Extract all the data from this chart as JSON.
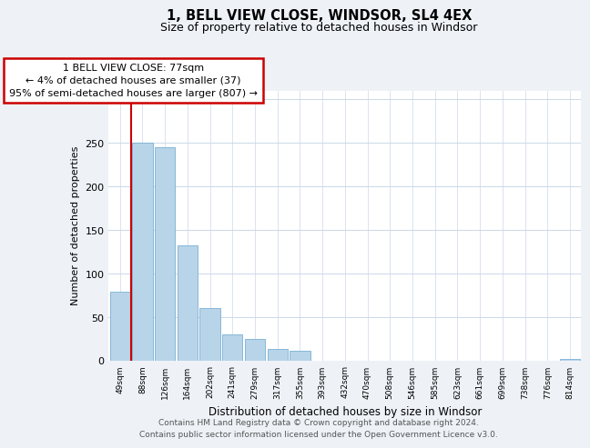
{
  "title": "1, BELL VIEW CLOSE, WINDSOR, SL4 4EX",
  "subtitle": "Size of property relative to detached houses in Windsor",
  "xlabel": "Distribution of detached houses by size in Windsor",
  "ylabel": "Number of detached properties",
  "categories": [
    "49sqm",
    "88sqm",
    "126sqm",
    "164sqm",
    "202sqm",
    "241sqm",
    "279sqm",
    "317sqm",
    "355sqm",
    "393sqm",
    "432sqm",
    "470sqm",
    "508sqm",
    "546sqm",
    "585sqm",
    "623sqm",
    "661sqm",
    "699sqm",
    "738sqm",
    "776sqm",
    "814sqm"
  ],
  "values": [
    79,
    250,
    245,
    132,
    60,
    30,
    25,
    14,
    11,
    0,
    0,
    0,
    0,
    0,
    0,
    0,
    0,
    0,
    0,
    0,
    2
  ],
  "bar_color": "#b8d4e8",
  "bar_edge_color": "#7aafd4",
  "annotation_title": "1 BELL VIEW CLOSE: 77sqm",
  "annotation_line1": "← 4% of detached houses are smaller (37)",
  "annotation_line2": "95% of semi-detached houses are larger (807) →",
  "annotation_box_color": "#ffffff",
  "annotation_box_edge": "#cc0000",
  "red_line_color": "#cc0000",
  "ylim": [
    0,
    310
  ],
  "yticks": [
    0,
    50,
    100,
    150,
    200,
    250,
    300
  ],
  "footer_line1": "Contains HM Land Registry data © Crown copyright and database right 2024.",
  "footer_line2": "Contains public sector information licensed under the Open Government Licence v3.0.",
  "bg_color": "#eef2f7",
  "plot_bg_color": "#ffffff",
  "grid_color": "#ccd8e8"
}
